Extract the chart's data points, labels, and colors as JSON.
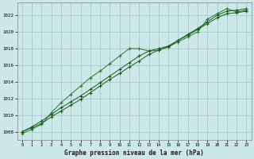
{
  "xlabel": "Graphe pression niveau de la mer (hPa)",
  "xlim": [
    -0.5,
    23.5
  ],
  "ylim": [
    1007.0,
    1023.5
  ],
  "yticks": [
    1008,
    1010,
    1012,
    1014,
    1016,
    1018,
    1020,
    1022
  ],
  "xticks": [
    0,
    1,
    2,
    3,
    4,
    5,
    6,
    7,
    8,
    9,
    10,
    11,
    12,
    13,
    14,
    15,
    16,
    17,
    18,
    19,
    20,
    21,
    22,
    23
  ],
  "background_color": "#cce8e8",
  "grid_color": "#aacece",
  "line_color_dark": "#1a5c1a",
  "line_color_mid": "#2a7a2a",
  "series1_x": [
    0,
    1,
    2,
    3,
    4,
    5,
    6,
    7,
    8,
    9,
    10,
    11,
    12,
    13,
    14,
    15,
    16,
    17,
    18,
    19,
    20,
    21,
    22,
    23
  ],
  "series1_y": [
    1008.0,
    1008.6,
    1009.3,
    1010.1,
    1010.9,
    1011.6,
    1012.3,
    1013.1,
    1013.9,
    1014.7,
    1015.5,
    1016.3,
    1017.1,
    1017.7,
    1018.0,
    1018.3,
    1019.0,
    1019.6,
    1020.3,
    1021.0,
    1021.7,
    1022.2,
    1022.3,
    1022.5
  ],
  "series2_x": [
    0,
    1,
    2,
    3,
    4,
    5,
    6,
    7,
    8,
    9,
    10,
    11,
    12,
    13,
    14,
    15,
    16,
    17,
    18,
    19,
    20,
    21,
    22,
    23
  ],
  "series2_y": [
    1008.0,
    1008.5,
    1009.0,
    1009.8,
    1010.5,
    1011.2,
    1011.9,
    1012.7,
    1013.5,
    1014.3,
    1015.0,
    1015.8,
    1016.5,
    1017.3,
    1017.8,
    1018.2,
    1019.0,
    1019.7,
    1020.4,
    1021.2,
    1022.0,
    1022.5,
    1022.6,
    1022.8
  ],
  "series3_x": [
    0,
    1,
    2,
    3,
    4,
    5,
    6,
    7,
    8,
    9,
    10,
    11,
    12,
    13,
    14,
    15,
    16,
    17,
    18,
    19,
    20,
    21,
    22,
    23
  ],
  "series3_y": [
    1007.8,
    1008.3,
    1008.9,
    1010.3,
    1011.5,
    1012.5,
    1013.5,
    1014.5,
    1015.3,
    1016.2,
    1017.1,
    1018.0,
    1018.0,
    1017.7,
    1017.8,
    1018.2,
    1018.8,
    1019.4,
    1020.0,
    1021.5,
    1022.2,
    1022.8,
    1022.4,
    1022.6
  ]
}
